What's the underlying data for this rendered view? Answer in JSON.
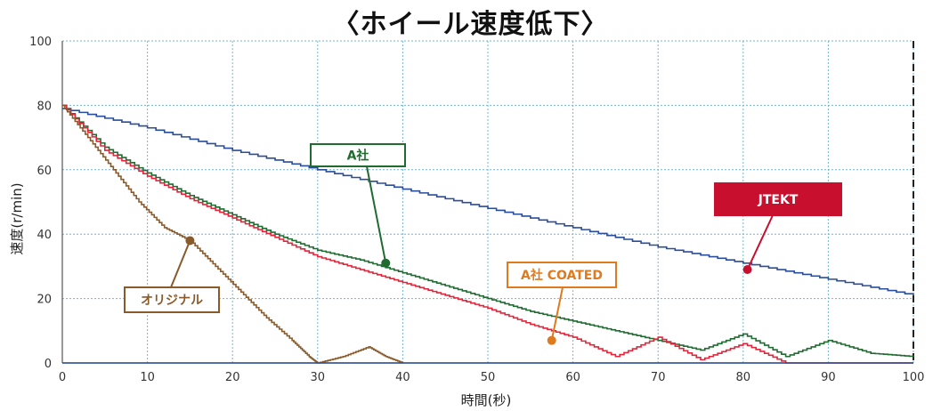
{
  "chart_data": {
    "type": "line",
    "title": "〈ホイール速度低下〉",
    "xlabel": "時間(秒)",
    "ylabel": "速度(r/min)",
    "xlim": [
      0,
      100
    ],
    "ylim": [
      0,
      100
    ],
    "xticks": [
      "0",
      "10",
      "20",
      "30",
      "40",
      "50",
      "60",
      "70",
      "80",
      "90",
      "100"
    ],
    "yticks": [
      "0",
      "20",
      "40",
      "60",
      "80",
      "100"
    ],
    "grid": true,
    "series": [
      {
        "name": "JTEKT",
        "color": "#2a4d9a",
        "x": [
          0,
          10,
          20,
          30,
          40,
          50,
          60,
          70,
          80,
          90,
          100
        ],
        "y": [
          79,
          73,
          66,
          60,
          54,
          48,
          42,
          36,
          31,
          26,
          21
        ]
      },
      {
        "name": "A社",
        "color": "#1f6b30",
        "x": [
          0,
          5,
          10,
          15,
          20,
          25,
          30,
          35,
          40,
          45,
          50,
          55,
          60,
          65,
          70,
          75,
          80,
          85,
          90,
          95,
          100
        ],
        "y": [
          80,
          67,
          59,
          52,
          46,
          40,
          35,
          32,
          28,
          24,
          20,
          16,
          13,
          10,
          7,
          4,
          9,
          2,
          7,
          3,
          2
        ]
      },
      {
        "name": "A社 COATED",
        "color": "#e0263b",
        "x": [
          0,
          5,
          10,
          15,
          20,
          25,
          30,
          35,
          40,
          45,
          50,
          55,
          60,
          65,
          70,
          75,
          80,
          85,
          90,
          95,
          100
        ],
        "y": [
          80,
          66,
          58,
          51,
          45,
          39,
          33,
          29,
          25,
          21,
          17,
          12,
          8,
          2,
          8,
          1,
          6,
          0,
          0,
          0,
          0
        ]
      },
      {
        "name": "オリジナル",
        "color": "#8a5a2b",
        "x": [
          0,
          3,
          6,
          9,
          12,
          15,
          18,
          21,
          24,
          27,
          29,
          30,
          33,
          36,
          38,
          40
        ],
        "y": [
          80,
          70,
          60,
          50,
          42,
          38,
          30,
          22,
          14,
          7,
          2,
          0,
          2,
          5,
          2,
          0
        ]
      }
    ],
    "annotations": [
      {
        "label": "A社",
        "series": "A社",
        "point": [
          38,
          31
        ]
      },
      {
        "label": "A社 COATED",
        "series": "A社 COATED",
        "point": [
          57.5,
          7
        ]
      },
      {
        "label": "JTEKT",
        "series": "JTEKT",
        "point": [
          80.5,
          29
        ]
      },
      {
        "label": "オリジナル",
        "series": "オリジナル",
        "point": [
          15,
          38
        ]
      }
    ]
  }
}
